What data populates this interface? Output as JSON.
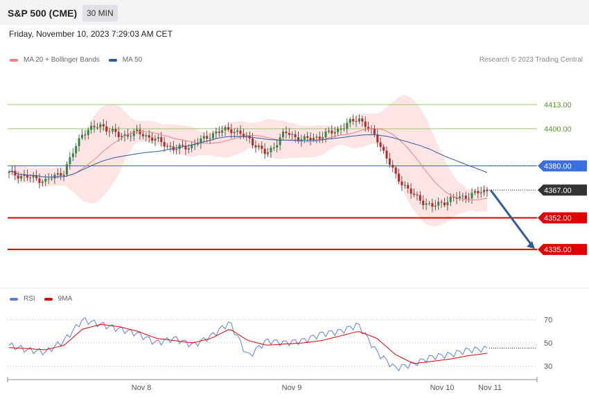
{
  "header": {
    "title": "S&P 500 (CME)",
    "interval": "30 MIN"
  },
  "datetime": "Friday, November 10, 2023 7:29:03 AM CET",
  "legend_main": [
    {
      "label": "MA 20 + Bollinger Bands",
      "color": "#f08080"
    },
    {
      "label": "MA 50",
      "color": "#2e5a9e"
    }
  ],
  "credit": "Research © 2023 Trading Central",
  "legend_rsi": [
    {
      "label": "RSI",
      "color": "#5b7fde"
    },
    {
      "label": "9MA",
      "color": "#e00000"
    }
  ],
  "colors": {
    "up": "#2e8b3a",
    "down": "#cc1f1f",
    "resistance": "#99cc66",
    "pivot": "#3a6fe0",
    "support": "#e00000",
    "arrow": "#2e5a9e"
  },
  "chart_data": [
    {
      "type": "candlestick",
      "ylim": [
        4322,
        4432
      ],
      "x_ticks": [
        "Nov 8",
        "Nov 9",
        "Nov 10",
        "Nov 11"
      ],
      "last_price": 4367.0,
      "levels": [
        {
          "value": 4413.0,
          "label": "4413.00",
          "kind": "resistance"
        },
        {
          "value": 4400.0,
          "label": "4400.00",
          "kind": "resistance"
        },
        {
          "value": 4380.0,
          "label": "4380.00",
          "kind": "pivot"
        },
        {
          "value": 4367.0,
          "label": "4367.00",
          "kind": "last"
        },
        {
          "value": 4352.0,
          "label": "4352.00",
          "kind": "support"
        },
        {
          "value": 4335.0,
          "label": "4335.00",
          "kind": "support"
        }
      ],
      "projection": {
        "from": 4367.0,
        "to": 4335.0
      },
      "key_closes": [
        4376,
        4374,
        4372,
        4377,
        4398,
        4402,
        4396,
        4398,
        4394,
        4389,
        4391,
        4397,
        4400,
        4395,
        4386,
        4398,
        4394,
        4396,
        4400,
        4406,
        4395,
        4375,
        4364,
        4358,
        4362,
        4364,
        4367
      ]
    },
    {
      "type": "line",
      "title": "RSI",
      "ylim": [
        20,
        80
      ],
      "y_ticks": [
        70,
        50,
        30
      ],
      "series": [
        {
          "name": "RSI",
          "values": [
            48,
            44,
            42,
            52,
            70,
            66,
            62,
            58,
            50,
            54,
            48,
            56,
            68,
            38,
            52,
            50,
            52,
            58,
            60,
            66,
            42,
            28,
            32,
            38,
            40,
            44,
            45
          ]
        },
        {
          "name": "9MA",
          "values": [
            46,
            45,
            44,
            48,
            62,
            66,
            64,
            60,
            54,
            52,
            50,
            54,
            62,
            52,
            48,
            49,
            50,
            52,
            56,
            60,
            54,
            40,
            32,
            34,
            36,
            39,
            41
          ]
        }
      ]
    }
  ]
}
